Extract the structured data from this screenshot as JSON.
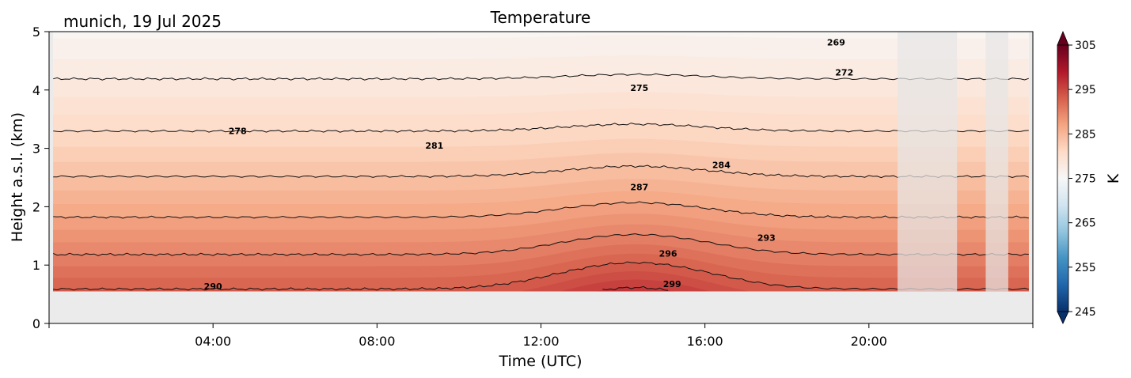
{
  "chart_data": {
    "type": "contour",
    "title": "Temperature",
    "subtitle": "munich, 19 Jul 2025",
    "xlabel": "Time (UTC)",
    "ylabel": "Height a.s.l. (km)",
    "x_units": "hours UTC",
    "xlim": [
      0,
      24
    ],
    "ylim": [
      0,
      5
    ],
    "xticks": [
      {
        "value": 0,
        "label": ""
      },
      {
        "value": 4,
        "label": "04:00"
      },
      {
        "value": 8,
        "label": "08:00"
      },
      {
        "value": 12,
        "label": "12:00"
      },
      {
        "value": 16,
        "label": "16:00"
      },
      {
        "value": 20,
        "label": "20:00"
      },
      {
        "value": 24,
        "label": ""
      }
    ],
    "yticks": [
      {
        "value": 0,
        "label": "0"
      },
      {
        "value": 1,
        "label": "1"
      },
      {
        "value": 2,
        "label": "2"
      },
      {
        "value": 3,
        "label": "3"
      },
      {
        "value": 4,
        "label": "4"
      },
      {
        "value": 5,
        "label": "5"
      }
    ],
    "data_bottom_km": 0.55,
    "data_extent_hours": [
      0.1,
      23.9
    ],
    "gaps_hours": [
      [
        20.7,
        22.15
      ],
      [
        22.85,
        23.4
      ]
    ],
    "contour_levels": [
      269,
      272,
      275,
      278,
      281,
      284,
      287,
      290,
      293,
      296,
      299
    ],
    "contour_labels": [
      {
        "text": "269",
        "x": 19.2,
        "y": 4.82
      },
      {
        "text": "272",
        "x": 19.4,
        "y": 4.3
      },
      {
        "text": "275",
        "x": 14.4,
        "y": 4.04
      },
      {
        "text": "278",
        "x": 4.6,
        "y": 3.3
      },
      {
        "text": "281",
        "x": 9.4,
        "y": 3.05
      },
      {
        "text": "284",
        "x": 16.4,
        "y": 2.72
      },
      {
        "text": "287",
        "x": 14.4,
        "y": 2.34
      },
      {
        "text": "290",
        "x": 4.0,
        "y": 0.64
      },
      {
        "text": "293",
        "x": 17.5,
        "y": 1.47
      },
      {
        "text": "296",
        "x": 15.1,
        "y": 1.2
      },
      {
        "text": "299",
        "x": 15.2,
        "y": 0.68
      }
    ],
    "colorbar": {
      "label": "K",
      "min": 245,
      "max": 305,
      "ticks": [
        245,
        255,
        265,
        275,
        285,
        295,
        305
      ],
      "colors": [
        "#08306b",
        "#2166ac",
        "#4393c3",
        "#92c5de",
        "#d1e5f0",
        "#f7f7f7",
        "#fddbc7",
        "#f4a582",
        "#d6604d",
        "#b2182b",
        "#67001f"
      ]
    }
  }
}
